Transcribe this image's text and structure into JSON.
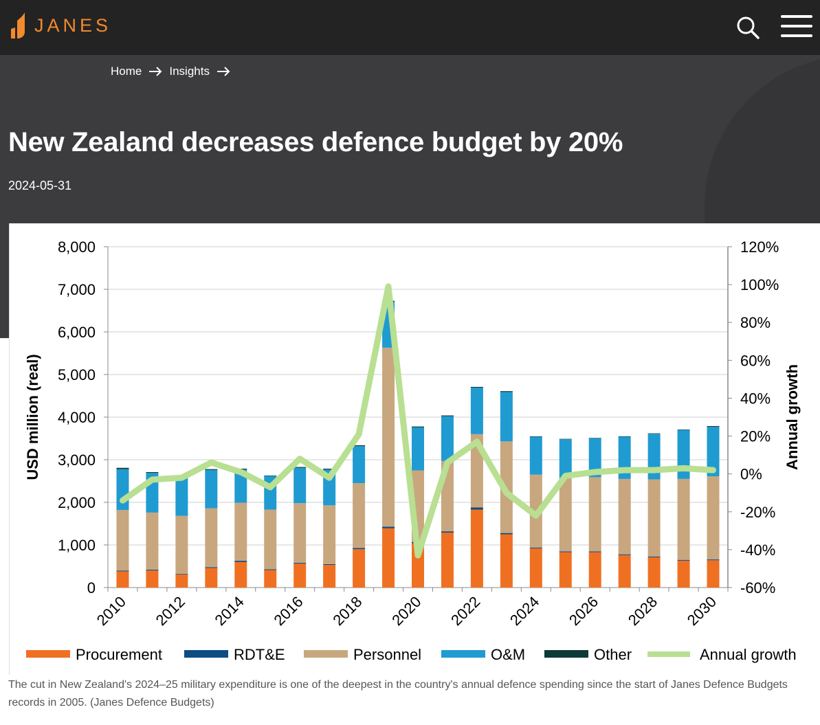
{
  "header": {
    "logo_text": "JANES",
    "logo_color": "#f28a2e",
    "search_icon": "search-icon",
    "menu_icon": "hamburger-menu-icon"
  },
  "breadcrumb": {
    "items": [
      "Home",
      "Insights"
    ],
    "separator_icon": "arrow-right-icon"
  },
  "article": {
    "title": "New Zealand decreases defence budget by 20%",
    "date": "2024-05-31"
  },
  "caption": "The cut in New Zealand's 2024–25 military expenditure is one of the deepest in the country's annual defence spending since the start of Janes Defence Budgets records in 2005. (Janes Defence Budgets)",
  "chart_data": {
    "type": "bar",
    "stacked": true,
    "categories": [
      "2010",
      "2011",
      "2012",
      "2013",
      "2014",
      "2015",
      "2016",
      "2017",
      "2018",
      "2019",
      "2020",
      "2021",
      "2022",
      "2023",
      "2024",
      "2025",
      "2026",
      "2027",
      "2028",
      "2029",
      "2030"
    ],
    "x_tick_labels": [
      "2010",
      "2012",
      "2014",
      "2016",
      "2018",
      "2020",
      "2022",
      "2024",
      "2026",
      "2028",
      "2030"
    ],
    "ylabel": "USD million (real)",
    "y2label": "Annual growth",
    "ylim": [
      0,
      8000
    ],
    "y_ticks": [
      "0",
      "1,000",
      "2,000",
      "3,000",
      "4,000",
      "5,000",
      "6,000",
      "7,000",
      "8,000"
    ],
    "y2lim": [
      -60,
      120
    ],
    "y2_ticks": [
      "-60%",
      "-40%",
      "-20%",
      "0%",
      "20%",
      "40%",
      "60%",
      "80%",
      "100%",
      "120%"
    ],
    "grid": true,
    "legend_position": "bottom",
    "series": [
      {
        "name": "Procurement",
        "color": "#f07022",
        "values": [
          380,
          400,
          310,
          460,
          600,
          410,
          560,
          530,
          900,
          1390,
          1040,
          1290,
          1830,
          1250,
          920,
          830,
          830,
          760,
          710,
          630,
          640
        ]
      },
      {
        "name": "RDT&E",
        "color": "#0e4c82",
        "values": [
          20,
          20,
          15,
          20,
          30,
          20,
          20,
          20,
          30,
          40,
          30,
          30,
          50,
          30,
          20,
          20,
          20,
          20,
          20,
          20,
          20
        ]
      },
      {
        "name": "Personnel",
        "color": "#c8a77f",
        "values": [
          1420,
          1340,
          1360,
          1380,
          1360,
          1400,
          1400,
          1380,
          1520,
          4200,
          1680,
          1650,
          1720,
          2150,
          1710,
          1720,
          1740,
          1770,
          1810,
          1900,
          1950
        ]
      },
      {
        "name": "O&M",
        "color": "#1f9bd1",
        "values": [
          960,
          930,
          920,
          900,
          780,
          790,
          830,
          840,
          870,
          1080,
          1010,
          1050,
          1090,
          1160,
          890,
          910,
          910,
          990,
          1070,
          1150,
          1160
        ]
      },
      {
        "name": "Other",
        "color": "#0c3a36",
        "values": [
          30,
          20,
          10,
          20,
          20,
          10,
          20,
          20,
          20,
          20,
          20,
          20,
          20,
          20,
          10,
          10,
          10,
          10,
          10,
          10,
          20
        ]
      }
    ],
    "line_series": {
      "name": "Annual growth",
      "color": "#b9df92",
      "axis": "right",
      "values": [
        -14,
        -3,
        -2,
        6,
        1,
        -7,
        8,
        -2,
        21,
        99,
        -43,
        6,
        17,
        -10,
        -22,
        -1,
        1,
        2,
        2,
        3,
        2
      ]
    }
  }
}
